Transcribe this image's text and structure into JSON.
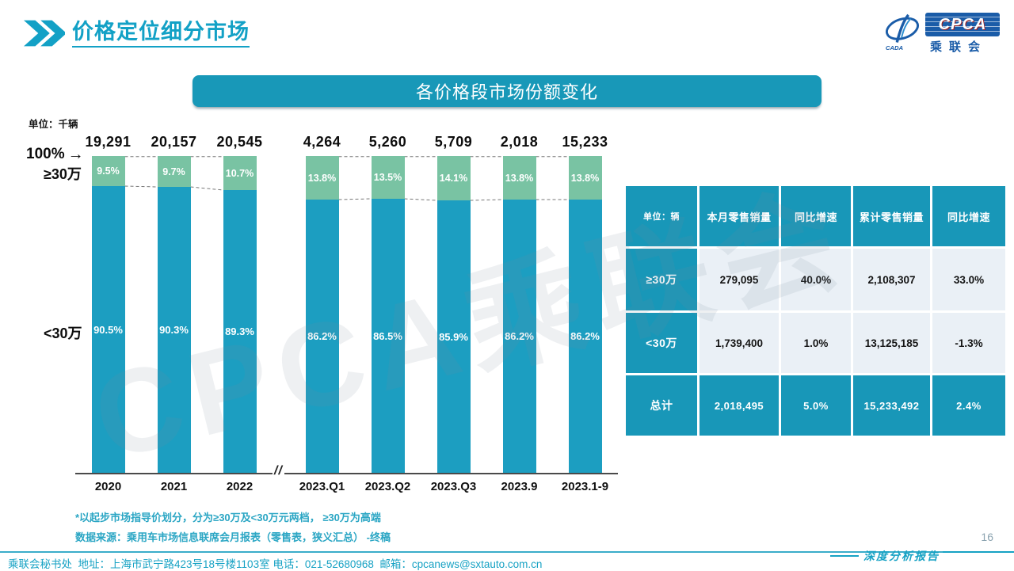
{
  "header": {
    "title": "价格定位细分市场"
  },
  "logo": {
    "cpca": "CPCA",
    "name": "乘联会",
    "cada": "CADA"
  },
  "banner": {
    "title": "各价格段市场份额变化"
  },
  "chart_data": {
    "type": "bar",
    "stacked": true,
    "unit_label": "单位：千辆",
    "percent_axis_label": "100%",
    "left_annotation_top": "≥30万",
    "left_annotation_bottom": "<30万",
    "categories": [
      "2020",
      "2021",
      "2022",
      "2023.Q1",
      "2023.Q2",
      "2023.Q3",
      "2023.9",
      "2023.1-9"
    ],
    "totals_thousands": [
      "19,291",
      "20,157",
      "20,545",
      "4,264",
      "5,260",
      "5,709",
      "2,018",
      "15,233"
    ],
    "series": [
      {
        "name": "≥30万",
        "color": "#79C3A3",
        "values": [
          9.5,
          9.7,
          10.7,
          13.8,
          13.5,
          14.1,
          13.8,
          13.8
        ]
      },
      {
        "name": "<30万",
        "color": "#1C9EC1",
        "values": [
          90.5,
          90.3,
          89.3,
          86.2,
          86.5,
          85.9,
          86.2,
          86.2
        ]
      }
    ],
    "ylim": [
      0,
      100
    ],
    "grid": false,
    "axis_break_after": "2022"
  },
  "table": {
    "unit_header": "单位：辆",
    "headers": [
      "本月零售销量",
      "同比增速",
      "累计零售销量",
      "同比增速"
    ],
    "rows": [
      {
        "label": "≥30万",
        "cells": [
          "279,095",
          "40.0%",
          "2,108,307",
          "33.0%"
        ]
      },
      {
        "label": "<30万",
        "cells": [
          "1,739,400",
          "1.0%",
          "13,125,185",
          "-1.3%"
        ]
      },
      {
        "label": "总计",
        "cells": [
          "2,018,495",
          "5.0%",
          "15,233,492",
          "2.4%"
        ]
      }
    ]
  },
  "notes": {
    "line1": "*以起步市场指导价划分，分为≥30万及<30万元两档， ≥30万为高端",
    "line2": "数据来源：乘用车市场信息联席会月报表（零售表，狭义汇总） -终稿"
  },
  "footer": {
    "left": "乘联会秘书处  地址：上海市武宁路423号18号楼1103室 电话：021-52680968  邮箱：cpcanews@sxtauto.com.cn",
    "report_label": "深度分析报告",
    "page": "16"
  },
  "watermark": "CPCA乘联会",
  "icons": {
    "right_arrow": "→",
    "axis_break": "//"
  },
  "colors": {
    "accent_teal": "#13A1C6",
    "bar_teal": "#1C9EC1",
    "bar_green": "#79C3A3",
    "table_teal": "#1897B8",
    "table_light": "#EAF0F6",
    "logo_blue": "#1A5CA8"
  }
}
